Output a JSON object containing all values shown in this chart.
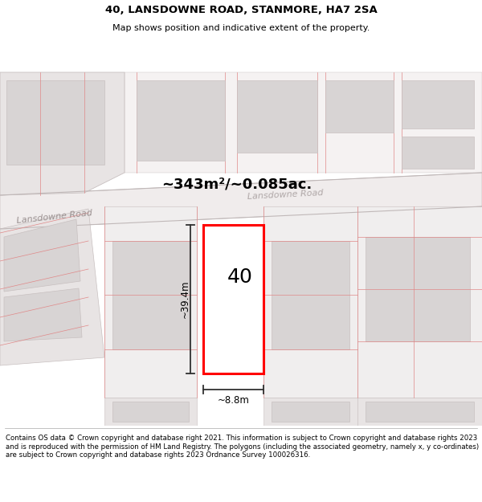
{
  "title": "40, LANSDOWNE ROAD, STANMORE, HA7 2SA",
  "subtitle": "Map shows position and indicative extent of the property.",
  "area_label": "~343m²/~0.085ac.",
  "property_number": "40",
  "dim_height": "~39.4m",
  "dim_width": "~8.8m",
  "road_label": "Lansdowne Road",
  "road_label2": "Lansdowne Road",
  "footer": "Contains OS data © Crown copyright and database right 2021. This information is subject to Crown copyright and database rights 2023 and is reproduced with the permission of HM Land Registry. The polygons (including the associated geometry, namely x, y co-ordinates) are subject to Crown copyright and database rights 2023 Ordnance Survey 100026316.",
  "map_bg": "#ffffff",
  "parcel_gray": "#d8d4d4",
  "parcel_light": "#e8e4e4",
  "parcel_edge_red": "#e08888",
  "parcel_edge_gray": "#c8c0c0",
  "road_fill": "#e8e4e4",
  "highlight_fill": "#ffffff",
  "highlight_edge": "#ff0000",
  "dim_line_color": "#303030",
  "title_fontsize": 9.5,
  "subtitle_fontsize": 8,
  "area_fontsize": 13,
  "number_fontsize": 18,
  "dim_fontsize": 8.5,
  "road_fontsize": 8,
  "footer_fontsize": 6.2
}
